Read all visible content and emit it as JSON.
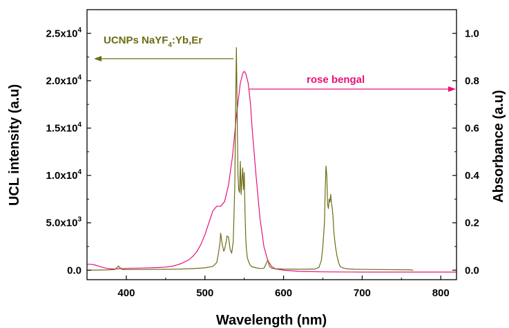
{
  "chart_data": {
    "type": "line",
    "xlabel": "Wavelength (nm)",
    "ylabel_left": "UCL intensity (a.u)",
    "ylabel_right": "Absorbance (a.u)",
    "xlim": [
      350,
      820
    ],
    "ylim_left": [
      -1000,
      27500
    ],
    "ylim_right": [
      -0.04,
      1.1
    ],
    "x_ticks": [
      "400",
      "500",
      "600",
      "700",
      "800"
    ],
    "y_left_ticks": [
      {
        "value": 0,
        "mantissa": "0.0",
        "exp": ""
      },
      {
        "value": 5000,
        "mantissa": "5.0x10",
        "exp": "3"
      },
      {
        "value": 10000,
        "mantissa": "1.0x10",
        "exp": "4"
      },
      {
        "value": 15000,
        "mantissa": "1.5x10",
        "exp": "4"
      },
      {
        "value": 20000,
        "mantissa": "2.0x10",
        "exp": "4"
      },
      {
        "value": 25000,
        "mantissa": "2.5x10",
        "exp": "4"
      }
    ],
    "y_right_ticks": [
      "0.0",
      "0.2",
      "0.4",
      "0.6",
      "0.8",
      "1.0"
    ],
    "grid": false,
    "colors": {
      "ucl": "#6b6b14",
      "rose": "#e8107a"
    },
    "annotations": {
      "ucl_label": "UCNPs NaYF",
      "ucl_sub": "4",
      "ucl_label_tail": ":Yb,Er",
      "rose_label": "rose bengal"
    },
    "series": [
      {
        "axis": "left",
        "x": [
          350,
          370,
          385,
          388,
          390,
          392,
          395,
          400,
          430,
          460,
          480,
          500,
          510,
          515,
          517,
          519,
          520,
          522,
          524,
          525,
          527,
          528,
          530,
          532,
          534,
          536,
          538,
          539,
          540,
          541,
          542,
          543,
          544,
          545,
          546,
          547,
          548,
          549,
          550,
          551,
          552,
          553,
          554,
          556,
          558,
          560,
          565,
          570,
          575,
          578,
          580,
          582,
          585,
          590,
          600,
          620,
          640,
          645,
          648,
          650,
          652,
          653,
          654,
          655,
          656,
          657,
          658,
          659,
          660,
          661,
          662,
          663,
          664,
          666,
          668,
          670,
          672,
          675,
          680,
          690,
          700,
          730,
          760,
          765
        ],
        "values": [
          0,
          20,
          60,
          250,
          450,
          250,
          60,
          60,
          80,
          100,
          150,
          250,
          400,
          800,
          1700,
          2800,
          3900,
          2700,
          2000,
          2200,
          3000,
          3600,
          3500,
          2200,
          1800,
          3000,
          9000,
          17000,
          23500,
          17000,
          10000,
          8500,
          8200,
          11500,
          8000,
          9500,
          10800,
          8500,
          10300,
          6000,
          3200,
          2000,
          1300,
          800,
          500,
          350,
          250,
          180,
          200,
          700,
          1100,
          400,
          200,
          150,
          120,
          100,
          120,
          300,
          1000,
          2500,
          5000,
          8500,
          11000,
          10000,
          7000,
          6500,
          7500,
          7200,
          8000,
          7000,
          6500,
          5500,
          4000,
          2500,
          1500,
          800,
          400,
          250,
          150,
          100,
          90,
          60,
          40,
          0
        ]
      },
      {
        "axis": "right",
        "x": [
          350,
          355,
          360,
          365,
          370,
          375,
          380,
          385,
          390,
          400,
          420,
          440,
          450,
          460,
          470,
          480,
          485,
          490,
          495,
          500,
          505,
          510,
          515,
          520,
          525,
          530,
          535,
          540,
          545,
          548,
          550,
          552,
          555,
          558,
          560,
          565,
          570,
          575,
          580,
          585,
          590,
          600,
          620,
          650,
          700,
          750,
          800,
          820
        ],
        "values": [
          0.025,
          0.025,
          0.022,
          0.017,
          0.012,
          0.008,
          0.006,
          0.005,
          0.006,
          0.008,
          0.009,
          0.011,
          0.013,
          0.018,
          0.028,
          0.045,
          0.06,
          0.08,
          0.11,
          0.15,
          0.2,
          0.25,
          0.27,
          0.27,
          0.29,
          0.36,
          0.48,
          0.65,
          0.79,
          0.83,
          0.84,
          0.83,
          0.79,
          0.7,
          0.6,
          0.4,
          0.22,
          0.1,
          0.04,
          0.015,
          0.005,
          0.0,
          -0.005,
          -0.007,
          -0.008,
          -0.008,
          -0.008,
          -0.008
        ]
      }
    ]
  }
}
